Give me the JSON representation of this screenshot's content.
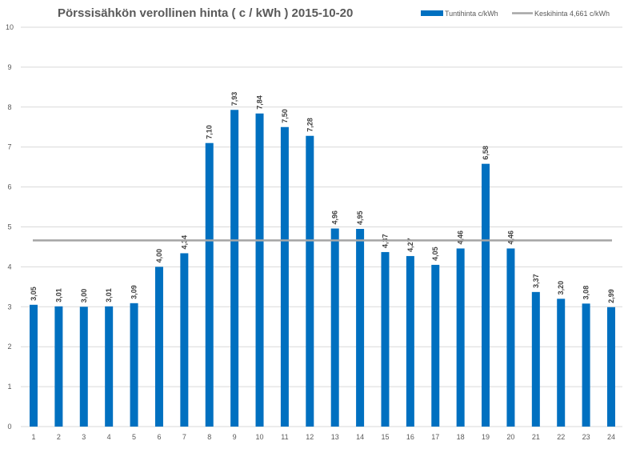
{
  "chart_data": {
    "type": "bar",
    "title": "Pörssisähkön verollinen hinta ( c / kWh ) 2015-10-20",
    "xlabel": "",
    "ylabel": "",
    "ylim": [
      0,
      10
    ],
    "yticks": [
      "0",
      "1",
      "2",
      "3",
      "4",
      "5",
      "6",
      "7",
      "8",
      "9",
      "10"
    ],
    "grid": true,
    "legend_position": "top-right",
    "categories": [
      "1",
      "2",
      "3",
      "4",
      "5",
      "6",
      "7",
      "8",
      "9",
      "10",
      "11",
      "12",
      "13",
      "14",
      "15",
      "16",
      "17",
      "18",
      "19",
      "20",
      "21",
      "22",
      "23",
      "24"
    ],
    "series": [
      {
        "name": "Tuntihinta c/kWh",
        "type": "bar",
        "color": "#0070C0",
        "values": [
          3.05,
          3.01,
          3.0,
          3.01,
          3.09,
          4.0,
          4.34,
          7.1,
          7.93,
          7.84,
          7.5,
          7.28,
          4.96,
          4.95,
          4.37,
          4.27,
          4.05,
          4.46,
          6.58,
          4.46,
          3.37,
          3.2,
          3.08,
          2.99
        ],
        "labels": [
          "3,05",
          "3,01",
          "3,00",
          "3,01",
          "3,09",
          "4,00",
          "4,34",
          "7,10",
          "7,93",
          "7,84",
          "7,50",
          "7,28",
          "4,96",
          "4,95",
          "4,37",
          "4,27",
          "4,05",
          "4,46",
          "6,58",
          "4,46",
          "3,37",
          "3,20",
          "3,08",
          "2,99"
        ]
      },
      {
        "name": "Keskihinta 4,661 c/kWh",
        "type": "line",
        "color": "#A5A5A5",
        "value": 4.661
      }
    ]
  }
}
